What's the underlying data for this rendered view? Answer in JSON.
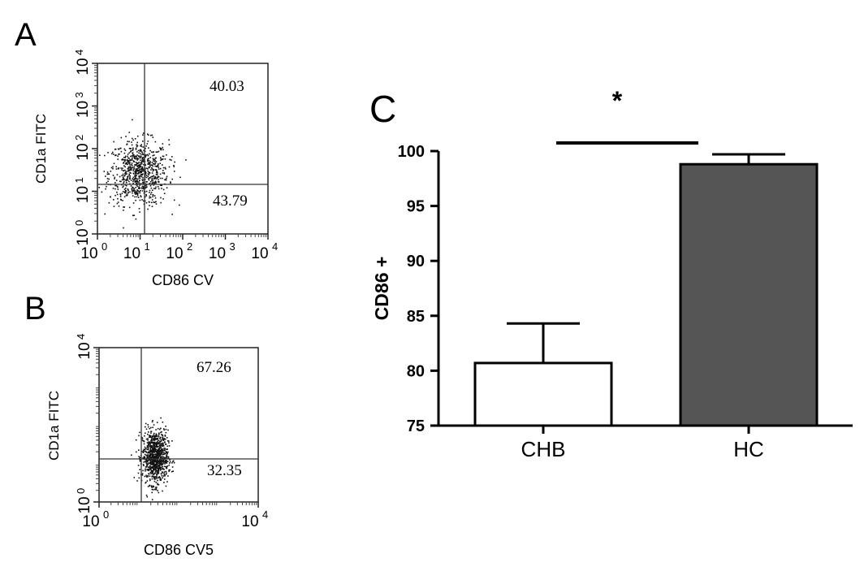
{
  "chart_data": [
    {
      "type": "scatter",
      "panel_label": "A",
      "xlabel": "CD86 CV",
      "ylabel": "CD1a FITC",
      "x_scale": "log",
      "y_scale": "log",
      "xlim": [
        1,
        10000
      ],
      "ylim": [
        1,
        10000
      ],
      "x_ticks": [
        "10",
        "10",
        "10",
        "10",
        "10"
      ],
      "x_tick_exponents": [
        "0",
        "1",
        "2",
        "3",
        "4"
      ],
      "y_ticks": [
        "10",
        "10",
        "10",
        "10",
        "10"
      ],
      "y_tick_exponents": [
        "0",
        "1",
        "2",
        "3",
        "4"
      ],
      "gate": {
        "x": 10,
        "y": 15
      },
      "quadrant_labels": [
        "40.03",
        "43.79"
      ],
      "cluster": {
        "center": [
          9,
          28
        ],
        "spread_log": [
          0.35,
          0.38
        ],
        "count": 800
      }
    },
    {
      "type": "scatter",
      "panel_label": "B",
      "xlabel": "CD86 CV5",
      "ylabel": "CD1a FITC",
      "x_scale": "log",
      "y_scale": "log",
      "xlim": [
        1,
        10000
      ],
      "ylim": [
        1,
        10000
      ],
      "x_ticks": [
        "10",
        "10"
      ],
      "x_tick_exponents": [
        "0",
        "4"
      ],
      "y_ticks": [
        "10",
        "10"
      ],
      "y_tick_exponents": [
        "0",
        "4"
      ],
      "gate": {
        "x": 6,
        "y": 6
      },
      "quadrant_labels": [
        "67.26",
        "32.35"
      ],
      "cluster": {
        "center": [
          25,
          15
        ],
        "spread_log": [
          0.16,
          0.35
        ],
        "count": 900
      }
    },
    {
      "type": "bar",
      "panel_label": "C",
      "categories": [
        "CHB",
        "HC"
      ],
      "values": [
        80.7,
        98.8
      ],
      "errors": [
        3.6,
        0.9
      ],
      "bar_colors": [
        "#ffffff",
        "#555555"
      ],
      "ylabel": "CD86 +",
      "ylim": [
        75,
        100
      ],
      "yticks": [
        75,
        80,
        85,
        90,
        95,
        100
      ],
      "significance": "*"
    }
  ]
}
